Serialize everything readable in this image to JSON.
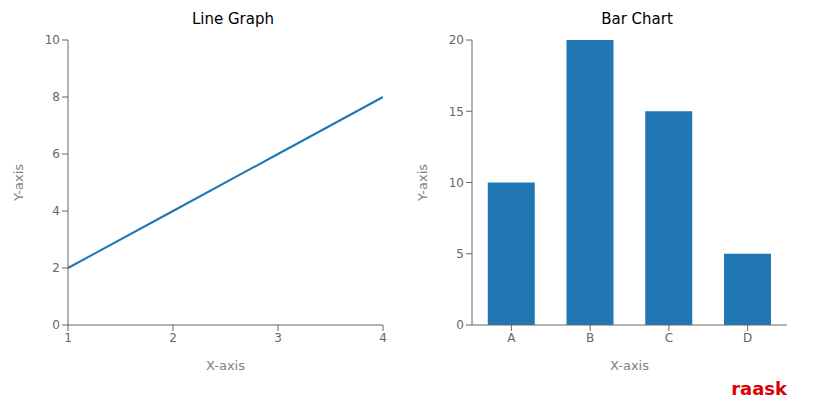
{
  "chart_data": [
    {
      "type": "line",
      "title": "Line Graph",
      "xlabel": "X-axis",
      "ylabel": "Y-axis",
      "x": [
        1,
        2,
        3,
        4
      ],
      "values": [
        2,
        4,
        6,
        8
      ],
      "color": "#1f77b4",
      "xlim": [
        1,
        4
      ],
      "xticks": [
        1,
        2,
        3,
        4
      ],
      "ylim": [
        0,
        10
      ],
      "yticks": [
        0,
        2,
        4,
        6,
        8,
        10
      ],
      "grid": false
    },
    {
      "type": "bar",
      "title": "Bar Chart",
      "xlabel": "X-axis",
      "ylabel": "Y-axis",
      "categories": [
        "A",
        "B",
        "C",
        "D"
      ],
      "values": [
        10,
        20,
        15,
        5
      ],
      "color": "#2077b4",
      "ylim": [
        0,
        20
      ],
      "yticks": [
        0,
        5,
        10,
        15,
        20
      ],
      "grid": false,
      "annotations": [
        {
          "text": "raask",
          "color": "#dd0000"
        }
      ]
    }
  ]
}
